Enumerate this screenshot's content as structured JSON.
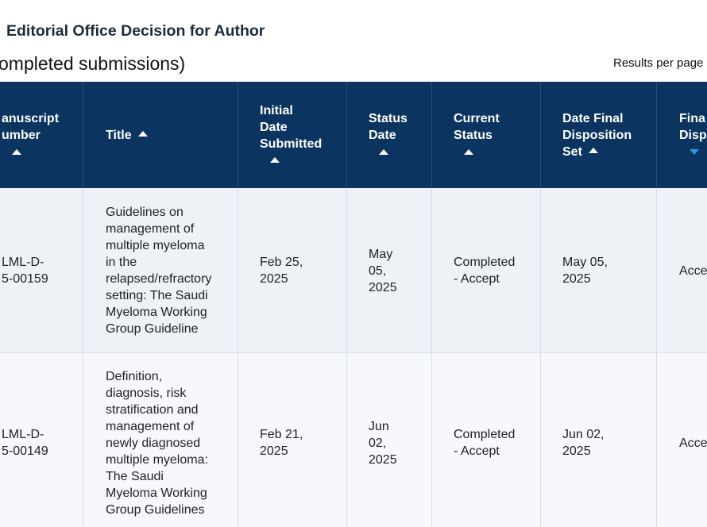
{
  "header": {
    "title": "Editorial Office Decision for Author",
    "subtitle": "ompleted submissions)",
    "results_per_page": "Results per page"
  },
  "table": {
    "columns": [
      [
        "anuscript",
        "umber"
      ],
      [
        "Title"
      ],
      [
        "Initial",
        "Date",
        "Submitted"
      ],
      [
        "Status",
        "Date"
      ],
      [
        "Current",
        "Status"
      ],
      [
        "Date Final",
        "Disposition",
        "Set"
      ],
      [
        "Fina",
        "Disp"
      ]
    ],
    "rows": [
      [
        [
          "LML-D-",
          "5-00159"
        ],
        [
          "Guidelines on",
          "management of",
          "multiple myeloma",
          "in the",
          "relapsed/refractory",
          "setting: The Saudi",
          "Myeloma Working",
          "Group Guideline"
        ],
        [
          "Feb 25,",
          "2025"
        ],
        [
          "May",
          "05,",
          "2025"
        ],
        [
          "Completed",
          "- Accept"
        ],
        [
          "May 05,",
          "2025"
        ],
        [
          "Acce"
        ]
      ],
      [
        [
          "LML-D-",
          "5-00149"
        ],
        [
          "Definition,",
          "diagnosis, risk",
          "stratification and",
          "management of",
          "newly diagnosed",
          "multiple myeloma:",
          "The Saudi",
          "Myeloma Working",
          "Group Guidelines"
        ],
        [
          "Feb 21,",
          "2025"
        ],
        [
          "Jun",
          "02,",
          "2025"
        ],
        [
          "Completed",
          "- Accept"
        ],
        [
          "Jun 02,",
          "2025"
        ],
        [
          "Acce"
        ]
      ]
    ]
  }
}
